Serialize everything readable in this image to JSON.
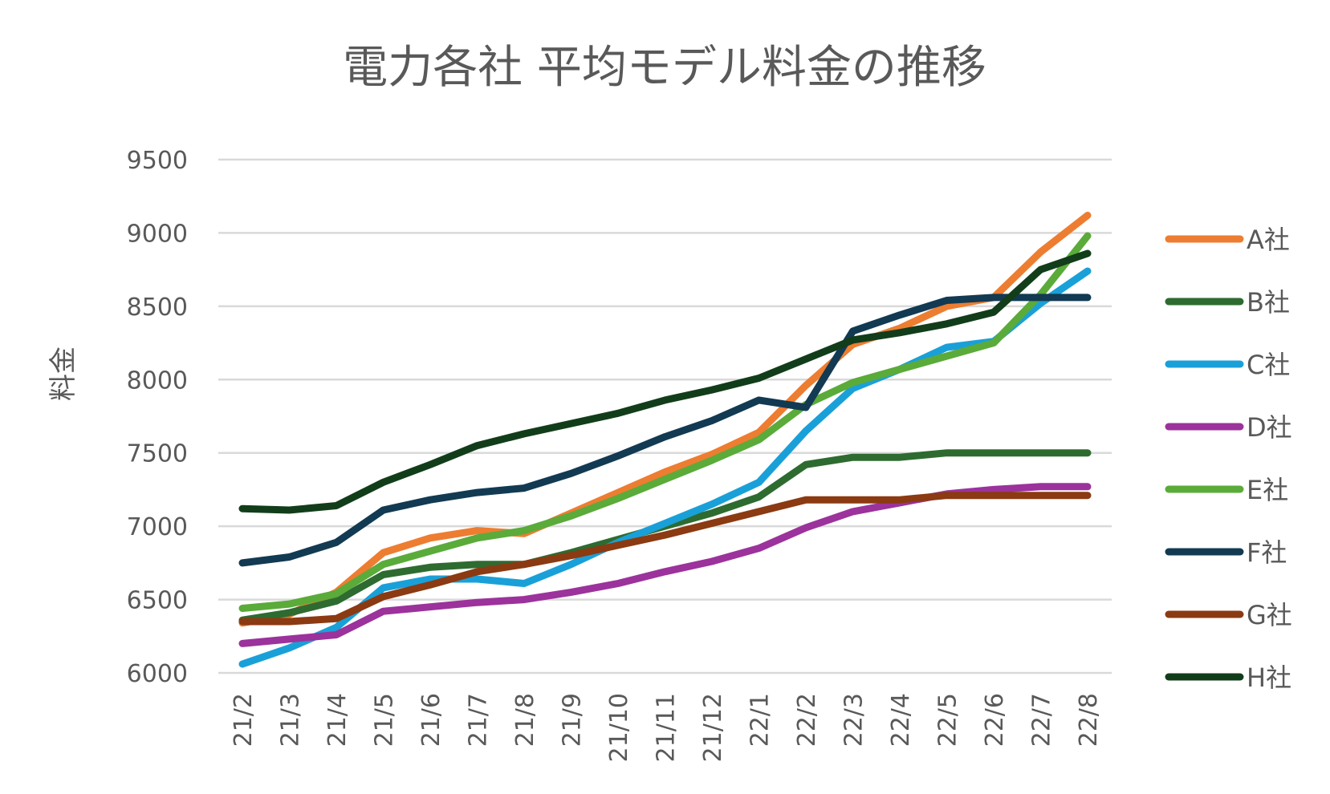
{
  "chart_data": {
    "type": "line",
    "title": "電力各社 平均モデル料金の推移",
    "xlabel": "",
    "ylabel": "料金",
    "ylim": [
      6000,
      9500
    ],
    "yticks": [
      "9500",
      "9000",
      "8500",
      "8000",
      "7500",
      "7000",
      "6500",
      "6000"
    ],
    "grid": true,
    "legend": "right",
    "categories": [
      "21/2",
      "21/3",
      "21/4",
      "21/5",
      "21/6",
      "21/7",
      "21/8",
      "21/9",
      "21/10",
      "21/11",
      "21/12",
      "22/1",
      "22/2",
      "22/3",
      "22/4",
      "22/5",
      "22/6",
      "22/7",
      "22/8"
    ],
    "series": [
      {
        "name": "A社",
        "color": "#ed7d31",
        "values": [
          6340,
          6400,
          6550,
          6820,
          6920,
          6970,
          6950,
          7090,
          7230,
          7370,
          7490,
          7640,
          7960,
          8240,
          8350,
          8500,
          8560,
          8870,
          9120
        ]
      },
      {
        "name": "B社",
        "color": "#2e6b30",
        "values": [
          6360,
          6410,
          6490,
          6670,
          6720,
          6740,
          6740,
          6820,
          6910,
          7000,
          7090,
          7200,
          7420,
          7470,
          7470,
          7500,
          7500,
          7500,
          7500
        ]
      },
      {
        "name": "C社",
        "color": "#1aa0d8",
        "values": [
          6060,
          6170,
          6310,
          6580,
          6640,
          6640,
          6610,
          6740,
          6890,
          7020,
          7150,
          7300,
          7650,
          7940,
          8070,
          8220,
          8260,
          8520,
          8740
        ]
      },
      {
        "name": "D社",
        "color": "#9c329c",
        "values": [
          6200,
          6230,
          6260,
          6420,
          6450,
          6480,
          6500,
          6550,
          6610,
          6690,
          6760,
          6850,
          6990,
          7100,
          7160,
          7220,
          7250,
          7270,
          7270
        ]
      },
      {
        "name": "E社",
        "color": "#5aab3a",
        "values": [
          6440,
          6470,
          6540,
          6740,
          6830,
          6920,
          6970,
          7070,
          7190,
          7320,
          7450,
          7590,
          7830,
          7980,
          8070,
          8160,
          8250,
          8580,
          8980
        ]
      },
      {
        "name": "F社",
        "color": "#123a52",
        "values": [
          6750,
          6790,
          6890,
          7110,
          7180,
          7230,
          7260,
          7360,
          7480,
          7610,
          7720,
          7860,
          7810,
          8330,
          8440,
          8540,
          8560,
          8560,
          8560
        ]
      },
      {
        "name": "G社",
        "color": "#8b3a12",
        "values": [
          6350,
          6350,
          6370,
          6520,
          6600,
          6690,
          6740,
          6800,
          6870,
          6940,
          7020,
          7100,
          7180,
          7180,
          7180,
          7210,
          7210,
          7210,
          7210
        ]
      },
      {
        "name": "H社",
        "color": "#123d1a",
        "values": [
          7120,
          7110,
          7140,
          7300,
          7420,
          7550,
          7630,
          7700,
          7770,
          7860,
          7930,
          8010,
          8140,
          8270,
          8320,
          8380,
          8460,
          8750,
          8860
        ]
      }
    ]
  }
}
